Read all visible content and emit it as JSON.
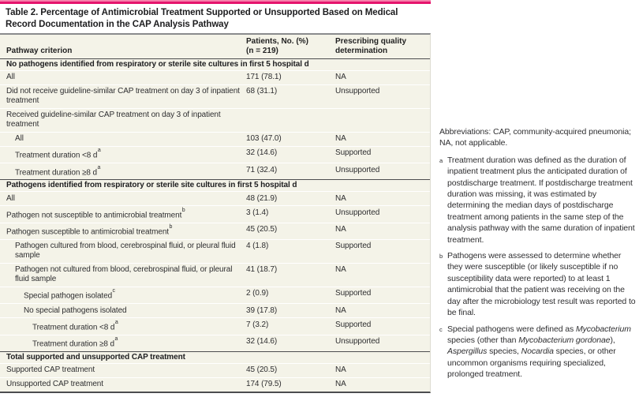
{
  "title": "Table 2. Percentage of Antimicrobial Treatment Supported or Unsupported Based on Medical Record Documentation in the CAP Analysis Pathway",
  "colors": {
    "accent_bar": "#e5146d",
    "accent_bar_light": "#f580ab",
    "table_background": "#f4f3e8",
    "dark_rule": "#4c4d4f",
    "header_rule": "#8a8b8d",
    "row_separator": "#ffffff",
    "text": "#2e2e30"
  },
  "table": {
    "header": {
      "col1": "Pathway criterion",
      "col2_line1": "Patients, No. (%)",
      "col2_line2": "(n = 219)",
      "col3_line1": "Prescribing quality",
      "col3_line2": "determination"
    },
    "rows": [
      {
        "section": true,
        "label": "No pathogens identified from respiratory or sterile site cultures in first 5 hospital d"
      },
      {
        "indent": 0,
        "label": "All",
        "value": "171 (78.1)",
        "det": "NA"
      },
      {
        "indent": 0,
        "label": "Did not receive guideline-similar CAP treatment on day 3 of inpatient treatment",
        "value": "68 (31.1)",
        "det": "Unsupported"
      },
      {
        "indent": 0,
        "label": "Received guideline-similar CAP treatment on day 3 of inpatient treatment",
        "value": "",
        "det": ""
      },
      {
        "indent": 1,
        "label": "All",
        "value": "103 (47.0)",
        "det": "NA"
      },
      {
        "indent": 1,
        "label": "Treatment duration <8 d",
        "sup": "a",
        "value": "32 (14.6)",
        "det": "Supported"
      },
      {
        "indent": 1,
        "label": "Treatment duration ≥8 d",
        "sup": "a",
        "value": "71 (32.4)",
        "det": "Unsupported"
      },
      {
        "section": true,
        "label": "Pathogens identified from respiratory or sterile site cultures in first 5 hospital d"
      },
      {
        "indent": 0,
        "label": "All",
        "value": "48 (21.9)",
        "det": "NA"
      },
      {
        "indent": 0,
        "label": "Pathogen not susceptible to antimicrobial treatment",
        "sup": "b",
        "value": "3 (1.4)",
        "det": "Unsupported"
      },
      {
        "indent": 0,
        "label": "Pathogen susceptible to antimicrobial treatment",
        "sup": "b",
        "value": "45 (20.5)",
        "det": "NA"
      },
      {
        "indent": 1,
        "label": "Pathogen cultured from blood, cerebrospinal fluid, or pleural fluid sample",
        "value": "4 (1.8)",
        "det": "Supported"
      },
      {
        "indent": 1,
        "label": "Pathogen not cultured from blood, cerebrospinal fluid, or pleural fluid sample",
        "value": "41 (18.7)",
        "det": "NA"
      },
      {
        "indent": 2,
        "label": "Special pathogen isolated",
        "sup": "c",
        "value": "2 (0.9)",
        "det": "Supported"
      },
      {
        "indent": 2,
        "label": "No special pathogens isolated",
        "value": "39 (17.8)",
        "det": "NA"
      },
      {
        "indent": 3,
        "label": "Treatment duration <8 d",
        "sup": "a",
        "value": "7 (3.2)",
        "det": "Supported"
      },
      {
        "indent": 3,
        "label": "Treatment duration ≥8 d",
        "sup": "a",
        "value": "32 (14.6)",
        "det": "Unsupported"
      },
      {
        "section": true,
        "label": "Total supported and unsupported CAP treatment"
      },
      {
        "indent": 0,
        "label": "Supported CAP treatment",
        "value": "45 (20.5)",
        "det": "NA"
      },
      {
        "indent": 0,
        "label": "Unsupported CAP treatment",
        "value": "174 (79.5)",
        "det": "NA"
      }
    ]
  },
  "footnotes": {
    "abbreviations": "Abbreviations: CAP, community-acquired pneumonia; NA, not applicable.",
    "items": [
      {
        "marker": "a",
        "segments": [
          {
            "t": "Treatment duration was defined as the duration of inpatient treatment plus the anticipated duration of postdischarge treatment. If postdischarge treatment duration was missing, it was estimated by determining the median days of postdischarge treatment among patients in the same step of the analysis pathway with the same duration of inpatient treatment.",
            "i": false
          }
        ]
      },
      {
        "marker": "b",
        "segments": [
          {
            "t": "Pathogens were assessed to determine whether they were susceptible (or likely susceptible if no susceptibility data were reported) to at least 1 antimicrobial that the patient was receiving on the day after the microbiology test result was reported to be final.",
            "i": false
          }
        ]
      },
      {
        "marker": "c",
        "segments": [
          {
            "t": "Special pathogens were defined as ",
            "i": false
          },
          {
            "t": "Mycobacterium",
            "i": true
          },
          {
            "t": " species (other than ",
            "i": false
          },
          {
            "t": "Mycobacterium gordonae",
            "i": true
          },
          {
            "t": "), ",
            "i": false
          },
          {
            "t": "Aspergillus",
            "i": true
          },
          {
            "t": " species, ",
            "i": false
          },
          {
            "t": "Nocardia",
            "i": true
          },
          {
            "t": " species, or other uncommon organisms requiring specialized, prolonged treatment.",
            "i": false
          }
        ]
      }
    ]
  }
}
